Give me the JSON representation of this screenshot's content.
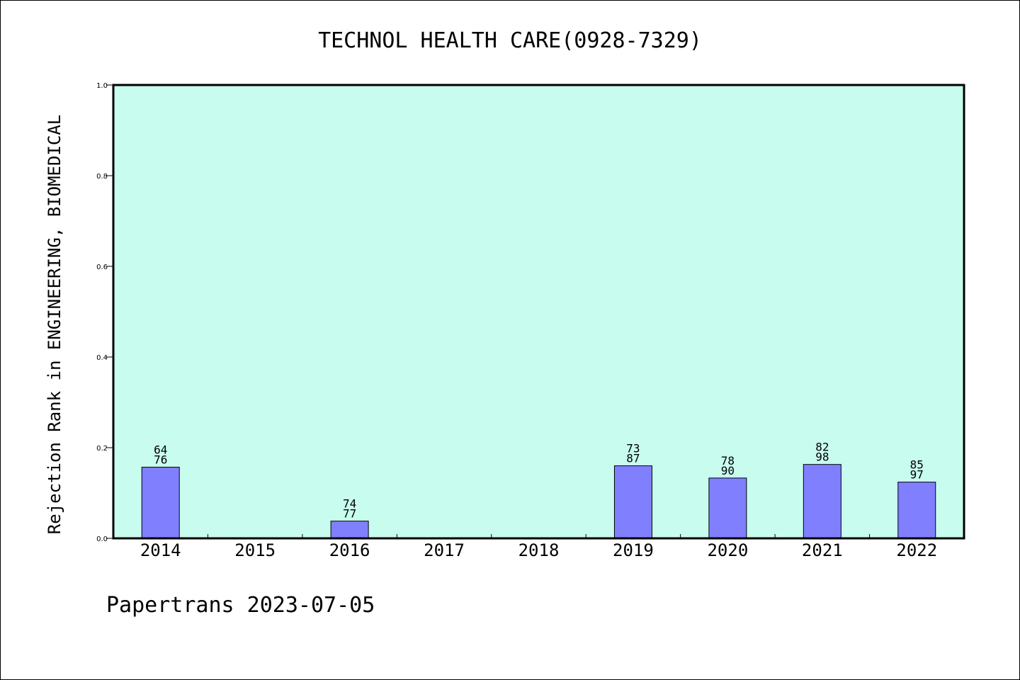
{
  "chart_data": {
    "type": "bar",
    "title": "TECHNOL HEALTH CARE(0928-7329)",
    "ylabel": "Rejection Rank in ENGINEERING, BIOMEDICAL",
    "xlabel": "",
    "categories": [
      "2014",
      "2015",
      "2016",
      "2017",
      "2018",
      "2019",
      "2020",
      "2021",
      "2022"
    ],
    "values": [
      0.157,
      null,
      0.038,
      null,
      null,
      0.16,
      0.133,
      0.163,
      0.124
    ],
    "bar_labels": [
      [
        "64",
        "76"
      ],
      null,
      [
        "74",
        "77"
      ],
      null,
      null,
      [
        "73",
        "87"
      ],
      [
        "78",
        "90"
      ],
      [
        "82",
        "98"
      ],
      [
        "85",
        "97"
      ]
    ],
    "ylim": [
      0,
      1.0
    ],
    "yticks": [
      "0.0",
      "0.2",
      "0.4",
      "0.6",
      "0.8",
      "1.0"
    ],
    "grid": false,
    "colors": {
      "plot_background": "#c8fcee",
      "bar_fill": "#8080ff",
      "bar_stroke": "#000000",
      "axis": "#000000"
    }
  },
  "footer": {
    "text": "Papertrans 2023-07-05"
  }
}
